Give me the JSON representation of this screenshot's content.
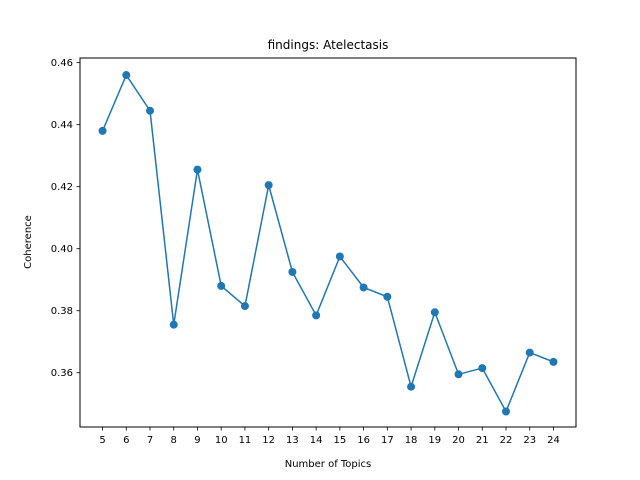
{
  "chart_data": {
    "type": "line",
    "title": "findings: Atelectasis",
    "xlabel": "Number of Topics",
    "ylabel": "Coherence",
    "x": [
      5,
      6,
      7,
      8,
      9,
      10,
      11,
      12,
      13,
      14,
      15,
      16,
      17,
      18,
      19,
      20,
      21,
      22,
      23,
      24
    ],
    "series": [
      {
        "values": [
          0.438,
          0.456,
          0.4445,
          0.3755,
          0.4255,
          0.388,
          0.3815,
          0.4205,
          0.3925,
          0.3785,
          0.3975,
          0.3875,
          0.3845,
          0.3555,
          0.3795,
          0.3595,
          0.3615,
          0.3475,
          0.3665,
          0.3635
        ],
        "color": "#1f77b4",
        "marker": "circle"
      }
    ],
    "xlim": [
      4.05,
      24.95
    ],
    "ylim": [
      0.3425,
      0.4615
    ],
    "xticks": [
      5,
      6,
      7,
      8,
      9,
      10,
      11,
      12,
      13,
      14,
      15,
      16,
      17,
      18,
      19,
      20,
      21,
      22,
      23,
      24
    ],
    "yticks": [
      0.36,
      0.38,
      0.4,
      0.42,
      0.44,
      0.46
    ],
    "ytick_labels": [
      "0.36",
      "0.38",
      "0.40",
      "0.42",
      "0.44",
      "0.46"
    ],
    "grid": false,
    "legend": "none"
  }
}
